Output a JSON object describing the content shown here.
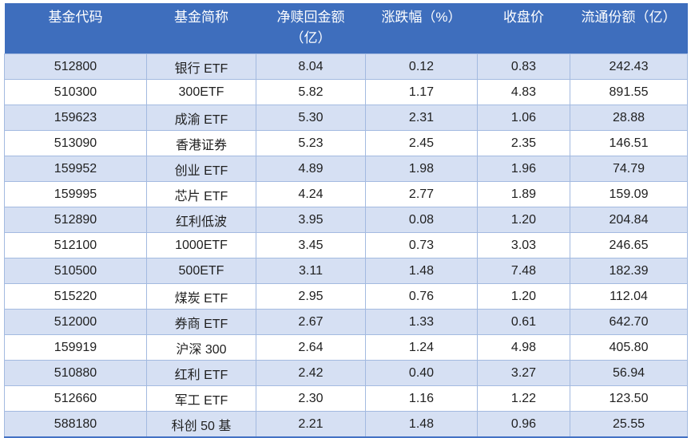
{
  "table": {
    "columns": [
      {
        "label": "基金代码",
        "lines": [
          "基金代码"
        ]
      },
      {
        "label": "基金简称",
        "lines": [
          "基金简称"
        ]
      },
      {
        "label": "净赎回金额（亿）",
        "lines": [
          "净赎回金额",
          "（亿）"
        ]
      },
      {
        "label": "涨跌幅（%）",
        "lines": [
          "涨跌幅（%）"
        ]
      },
      {
        "label": "收盘价",
        "lines": [
          "收盘价"
        ]
      },
      {
        "label": "流通份额（亿）",
        "lines": [
          "流通份额（亿）"
        ]
      }
    ],
    "rows": [
      [
        "512800",
        "银行 ETF",
        "8.04",
        "0.12",
        "0.83",
        "242.43"
      ],
      [
        "510300",
        "300ETF",
        "5.82",
        "1.17",
        "4.83",
        "891.55"
      ],
      [
        "159623",
        "成渝 ETF",
        "5.30",
        "2.31",
        "1.06",
        "28.88"
      ],
      [
        "513090",
        "香港证券",
        "5.23",
        "2.45",
        "2.35",
        "146.51"
      ],
      [
        "159952",
        "创业 ETF",
        "4.89",
        "1.98",
        "1.96",
        "74.79"
      ],
      [
        "159995",
        "芯片 ETF",
        "4.24",
        "2.77",
        "1.89",
        "159.09"
      ],
      [
        "512890",
        "红利低波",
        "3.95",
        "0.08",
        "1.20",
        "204.84"
      ],
      [
        "512100",
        "1000ETF",
        "3.45",
        "0.73",
        "3.03",
        "246.65"
      ],
      [
        "510500",
        "500ETF",
        "3.11",
        "1.48",
        "7.48",
        "182.39"
      ],
      [
        "515220",
        "煤炭 ETF",
        "2.95",
        "0.76",
        "1.20",
        "112.04"
      ],
      [
        "512000",
        "券商 ETF",
        "2.67",
        "1.33",
        "0.61",
        "642.70"
      ],
      [
        "159919",
        "沪深 300",
        "2.64",
        "1.24",
        "4.98",
        "405.80"
      ],
      [
        "510880",
        "红利 ETF",
        "2.42",
        "0.40",
        "3.27",
        "56.94"
      ],
      [
        "512660",
        "军工 ETF",
        "2.30",
        "1.16",
        "1.22",
        "123.50"
      ],
      [
        "588180",
        "科创 50 基",
        "2.21",
        "1.48",
        "0.96",
        "25.55"
      ]
    ]
  },
  "colors": {
    "header_bg": "#3E6EBD",
    "band_bg": "#D6E0F3",
    "border": "#A3BAE0",
    "bottom_border": "#4472C4",
    "header_text": "#FFFFFF",
    "body_text": "#1F1F1F",
    "page_bg": "#FFFFFF"
  }
}
